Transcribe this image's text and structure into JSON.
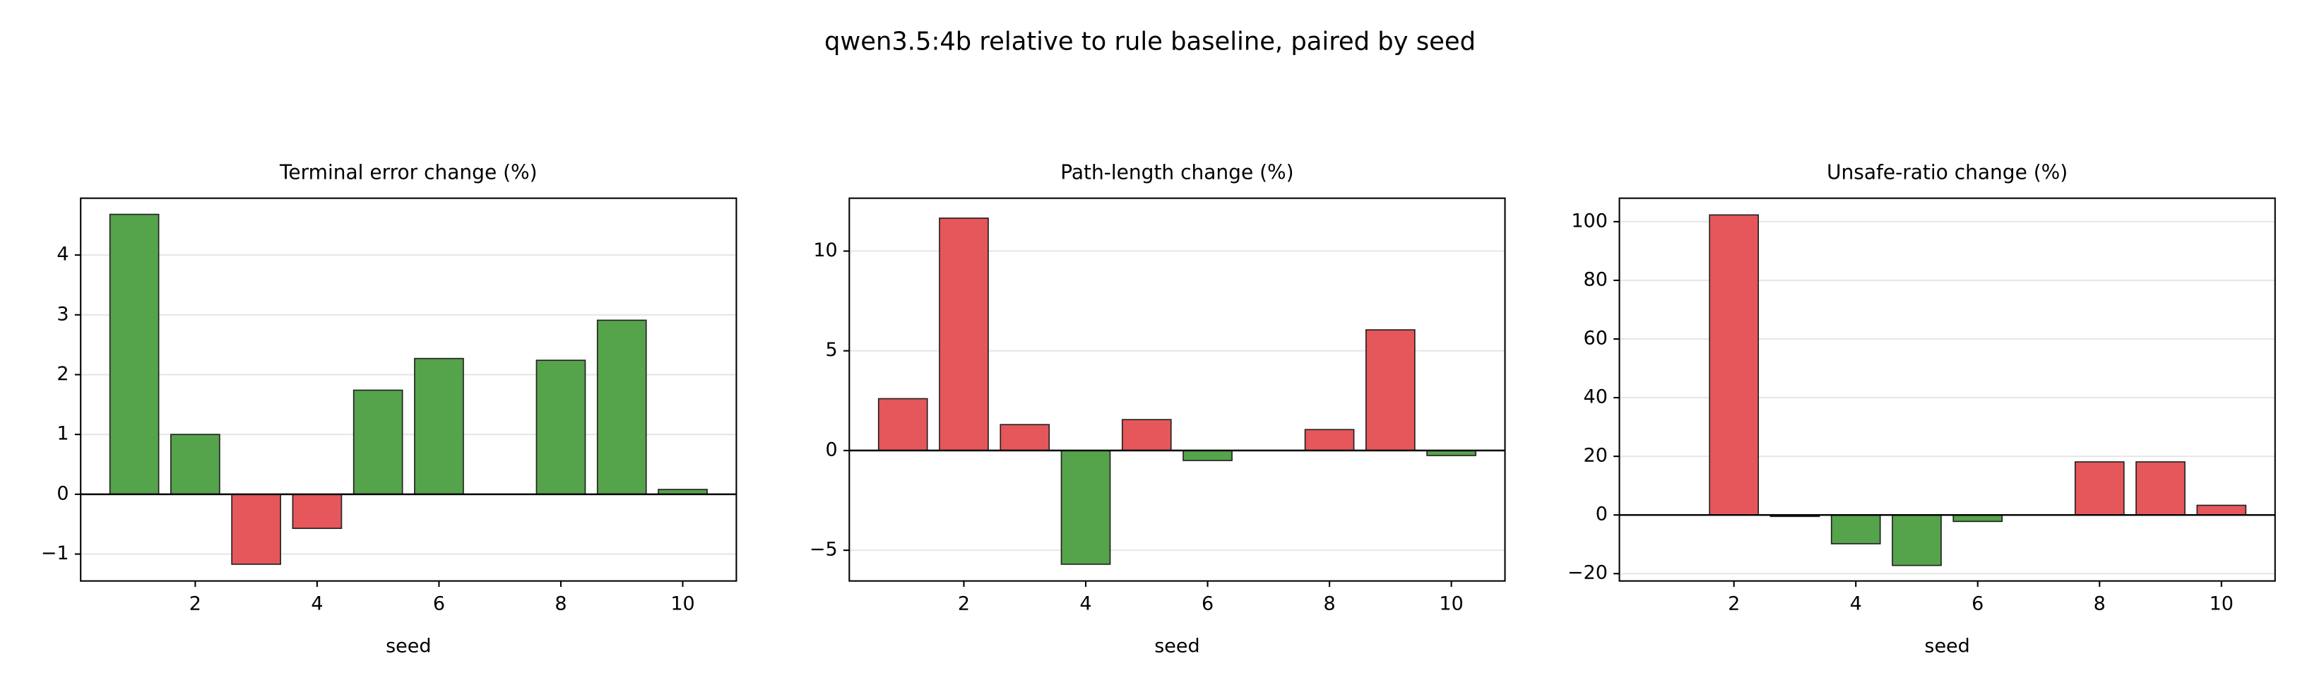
{
  "title": "qwen3.5:4b relative to rule baseline, paired by seed",
  "chart_data": [
    {
      "type": "bar",
      "title": "Terminal error change (%)",
      "x_label": "seed",
      "x": [
        1,
        2,
        3,
        4,
        5,
        6,
        7,
        8,
        9,
        10
      ],
      "values": [
        4.68,
        1.0,
        -1.17,
        -0.57,
        1.74,
        2.27,
        0,
        2.24,
        2.91,
        0.08
      ],
      "colors": [
        "#55a34b",
        "#55a34b",
        "#e5575a",
        "#e5575a",
        "#55a34b",
        "#55a34b",
        "#55a34b",
        "#55a34b",
        "#55a34b",
        "#55a34b"
      ],
      "xlim": [
        0.12,
        10.88
      ],
      "xticks": [
        2,
        4,
        6,
        8,
        10
      ],
      "ylim": [
        -1.45,
        4.95
      ],
      "yticks": [
        {
          "value": -1,
          "label": "−1"
        },
        0,
        1,
        2,
        3,
        4
      ],
      "grid": true
    },
    {
      "type": "bar",
      "title": "Path-length change (%)",
      "x_label": "seed",
      "x": [
        1,
        2,
        3,
        4,
        5,
        6,
        7,
        8,
        9,
        10
      ],
      "values": [
        2.6,
        11.65,
        1.3,
        -5.7,
        1.55,
        -0.5,
        0,
        1.05,
        6.05,
        -0.25
      ],
      "colors": [
        "#e5575a",
        "#e5575a",
        "#e5575a",
        "#55a34b",
        "#e5575a",
        "#55a34b",
        "#e5575a",
        "#e5575a",
        "#e5575a",
        "#55a34b"
      ],
      "xlim": [
        0.12,
        10.88
      ],
      "xticks": [
        2,
        4,
        6,
        8,
        10
      ],
      "ylim": [
        -6.54,
        12.65
      ],
      "yticks": [
        {
          "value": -5,
          "label": "−5"
        },
        0,
        5,
        10
      ],
      "grid": true
    },
    {
      "type": "bar",
      "title": "Unsafe-ratio change (%)",
      "x_label": "seed",
      "x": [
        1,
        2,
        3,
        4,
        5,
        6,
        7,
        8,
        9,
        10
      ],
      "values": [
        0,
        102.3,
        -0.5,
        -9.8,
        -17.2,
        -2.2,
        0,
        18.1,
        18.1,
        3.3
      ],
      "colors": [
        "#e5575a",
        "#e5575a",
        "#55a34b",
        "#55a34b",
        "#55a34b",
        "#55a34b",
        "#e5575a",
        "#e5575a",
        "#e5575a",
        "#e5575a"
      ],
      "xlim": [
        0.12,
        10.88
      ],
      "xticks": [
        2,
        4,
        6,
        8,
        10
      ],
      "ylim": [
        -22.5,
        108
      ],
      "yticks": [
        {
          "value": -20,
          "label": "−20"
        },
        0,
        20,
        40,
        60,
        80,
        100
      ],
      "grid": true
    }
  ]
}
